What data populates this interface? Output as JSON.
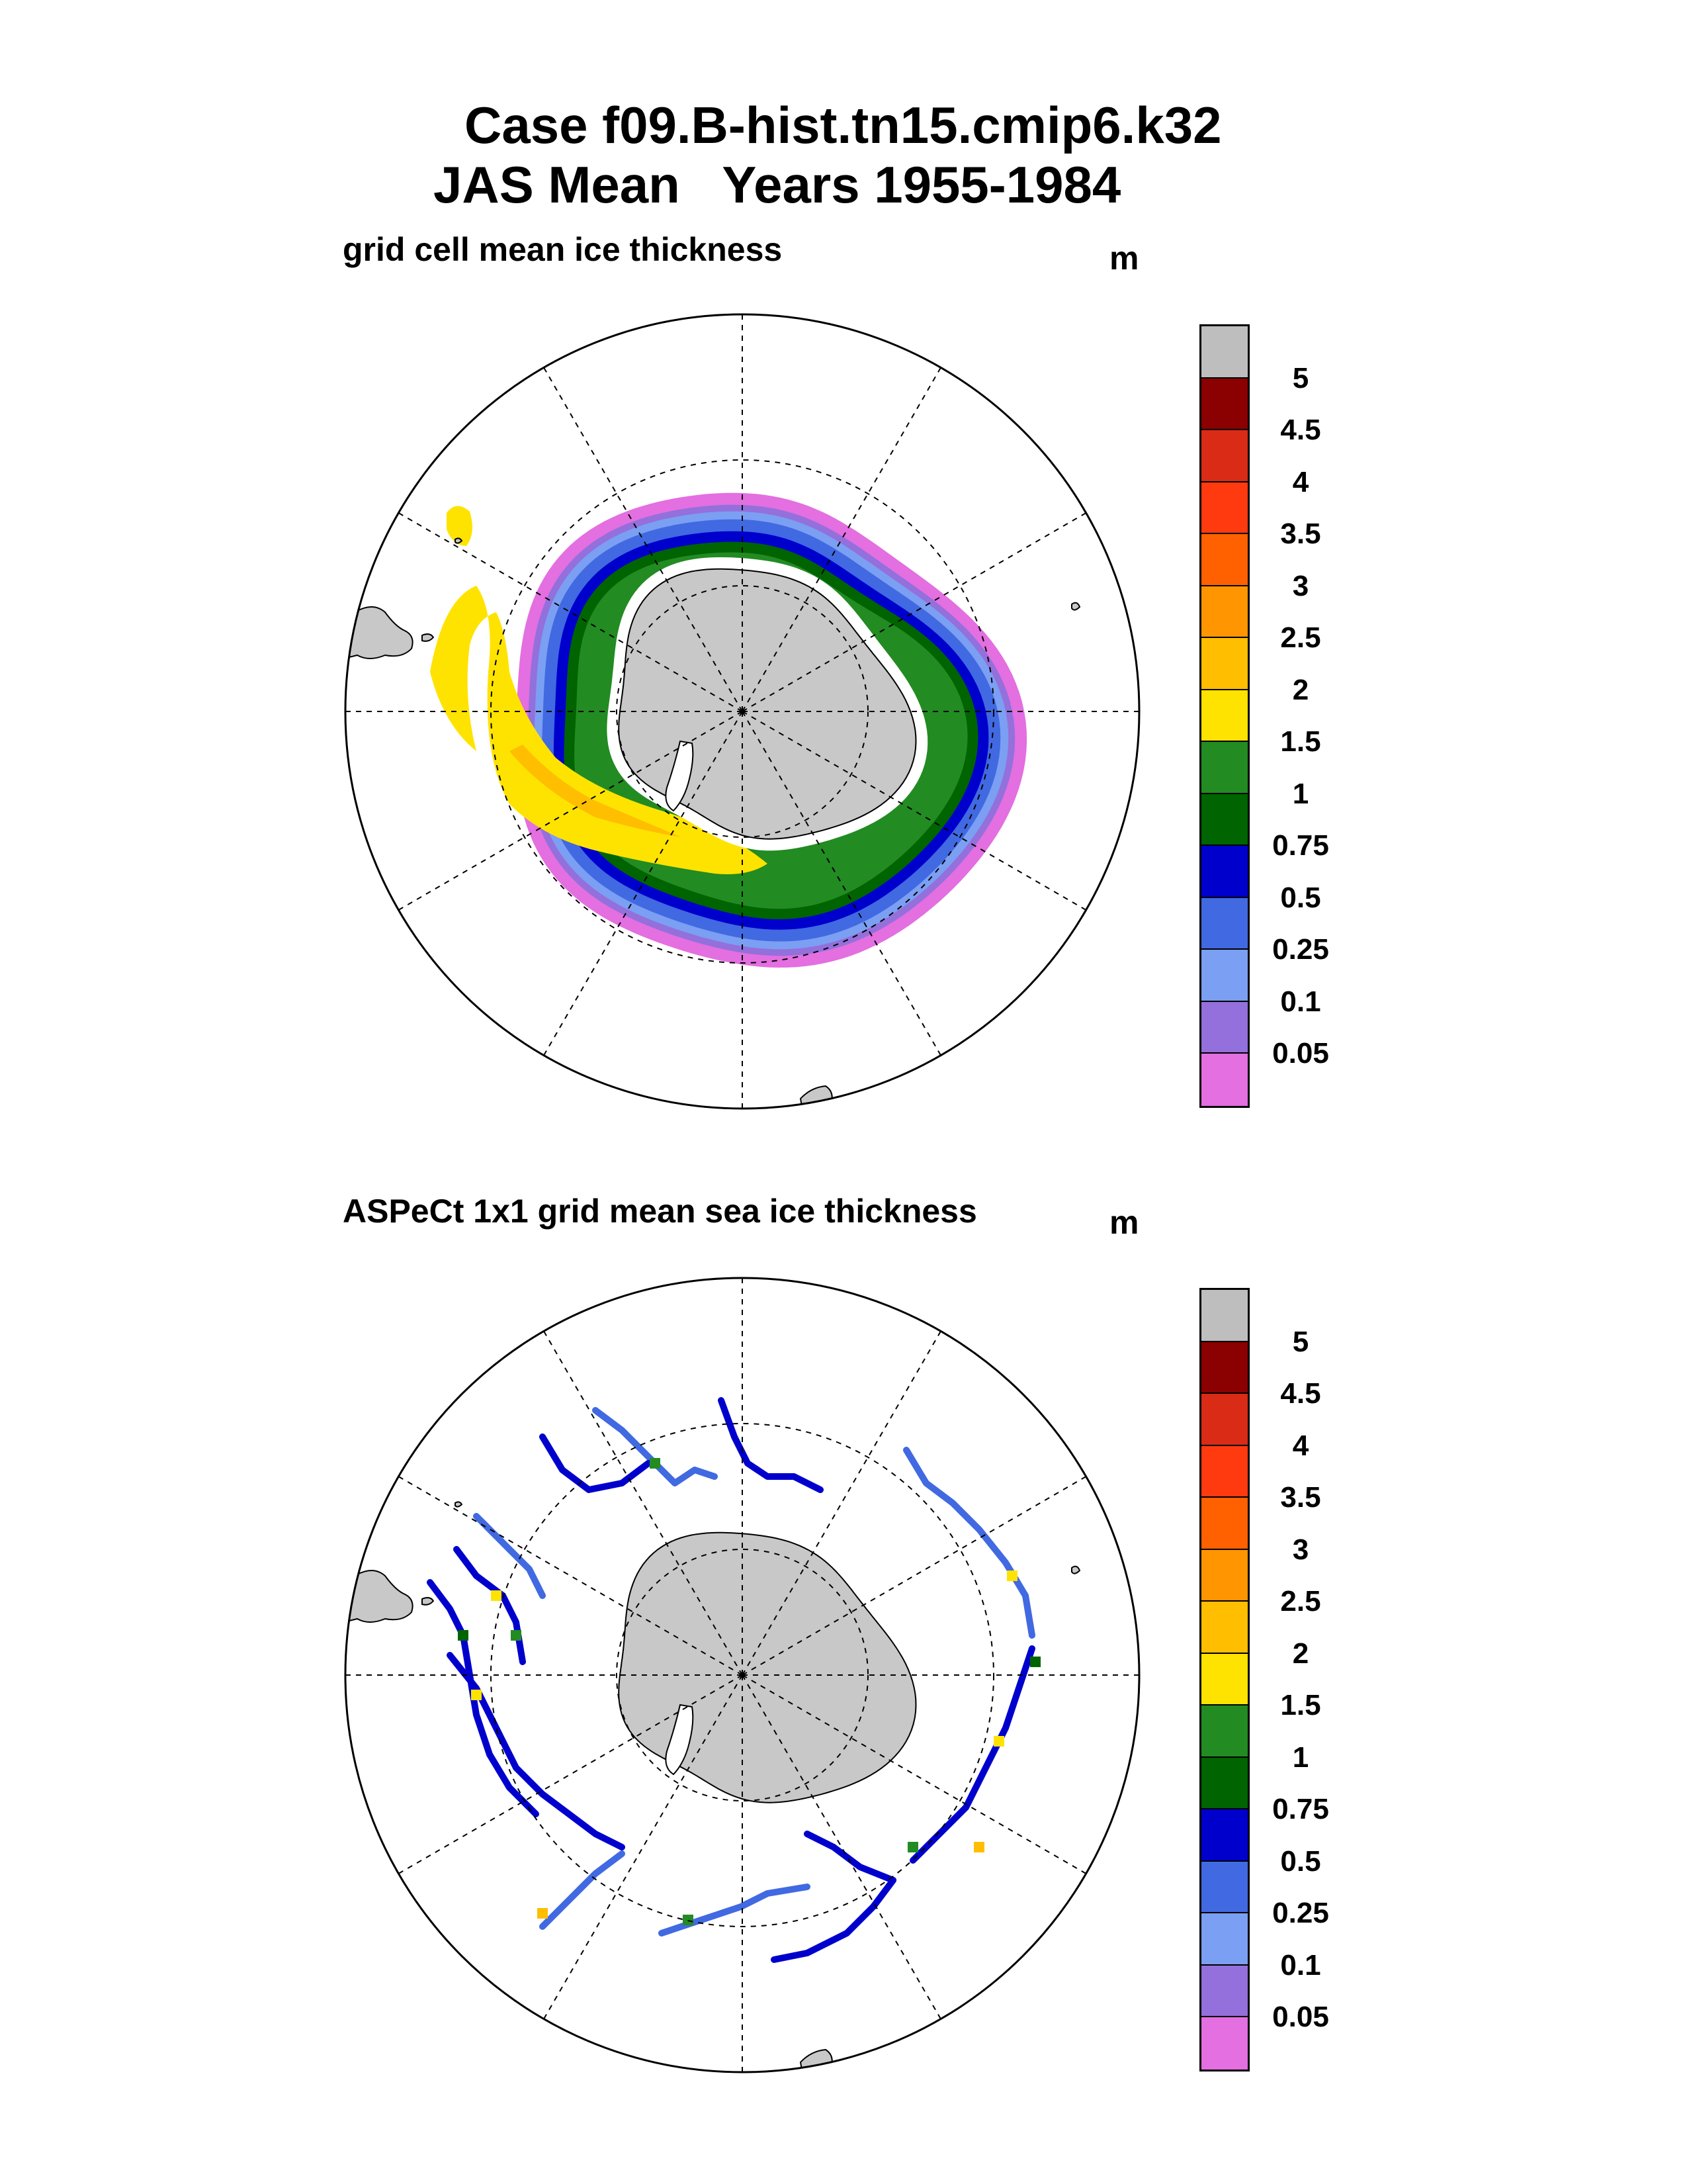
{
  "header": {
    "line1": "Case f09.B-hist.tn15.cmip6.k32",
    "line2": "JAS Mean   Years 1955-1984"
  },
  "panels": [
    {
      "label": "grid cell mean ice thickness",
      "unit": "m",
      "data_kind": "model"
    },
    {
      "label": "ASPeCt 1x1 grid mean sea ice thickness",
      "unit": "m",
      "data_kind": "observations"
    }
  ],
  "colorbar": {
    "levels": [
      "5",
      "4.5",
      "4",
      "3.5",
      "3",
      "2.5",
      "2",
      "1.5",
      "1",
      "0.75",
      "0.5",
      "0.25",
      "0.1",
      "0.05"
    ],
    "colors": [
      "#bebebe",
      "#8b0000",
      "#d92b16",
      "#ff3a0f",
      "#ff6000",
      "#ff9500",
      "#ffbe00",
      "#ffe300",
      "#228b22",
      "#006400",
      "#0000cd",
      "#4169e1",
      "#7b9ff2",
      "#9370db",
      "#e36fe0"
    ]
  },
  "map_style": {
    "land_color": "#c8c8c8",
    "coastline_color": "#000000",
    "graticule": "dashed",
    "projection": "south polar stereographic"
  }
}
